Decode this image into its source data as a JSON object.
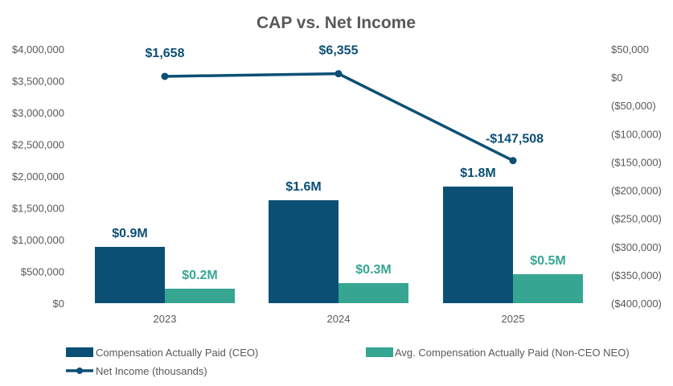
{
  "chart_data": {
    "type": "bar",
    "title": "CAP vs. Net Income",
    "categories": [
      "2023",
      "2024",
      "2025"
    ],
    "left_axis": {
      "ylim": [
        0,
        4000000
      ],
      "ticks": [
        "$0",
        "$500,000",
        "$1,000,000",
        "$1,500,000",
        "$2,000,000",
        "$2,500,000",
        "$3,000,000",
        "$3,500,000",
        "$4,000,000"
      ]
    },
    "right_axis": {
      "ylim": [
        -400000,
        50000
      ],
      "ticks": [
        "($400,000)",
        "($350,000)",
        "($300,000)",
        "($250,000)",
        "($200,000)",
        "($150,000)",
        "($100,000)",
        "($50,000)",
        "$0",
        "$50,000"
      ]
    },
    "series": [
      {
        "name": "Compensation Actually Paid (CEO)",
        "type": "bar",
        "axis": "left",
        "color": "#0b4f75",
        "values": [
          886000,
          1620000,
          1835000
        ],
        "labels": [
          "$0.9M",
          "$1.6M",
          "$1.8M"
        ]
      },
      {
        "name": "Avg. Compensation Actually Paid (Non-CEO NEO)",
        "type": "bar",
        "axis": "left",
        "color": "#36a693",
        "values": [
          228000,
          316000,
          456000
        ],
        "labels": [
          "$0.2M",
          "$0.3M",
          "$0.5M"
        ]
      },
      {
        "name": "Net Income (thousands)",
        "type": "line",
        "axis": "right",
        "color": "#0b4f75",
        "values": [
          1658,
          6355,
          -147508
        ],
        "labels": [
          "$1,658",
          "$6,355",
          "-$147,508"
        ]
      }
    ],
    "grid": false,
    "legend": "bottom"
  }
}
